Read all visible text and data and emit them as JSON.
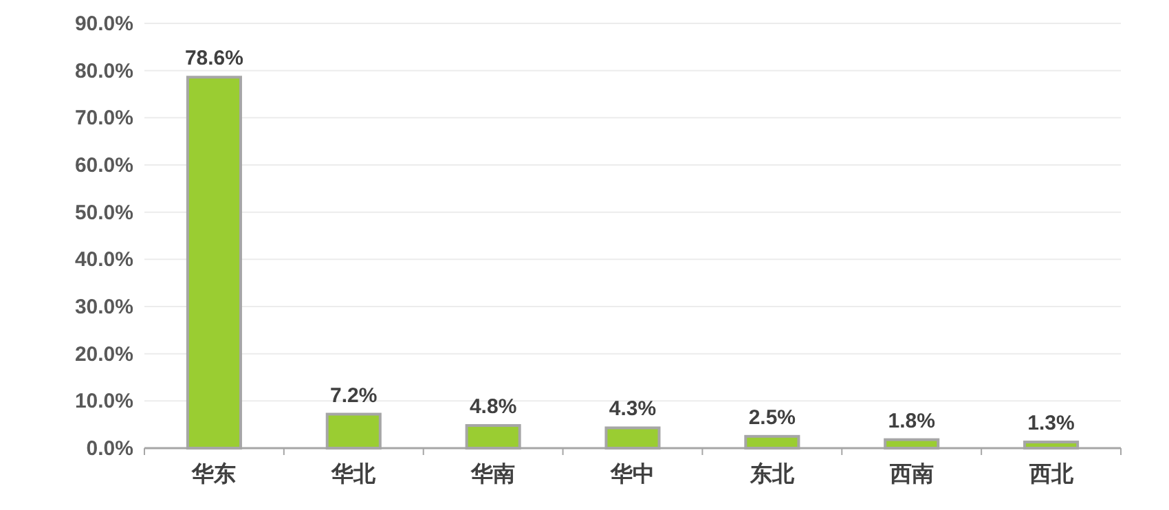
{
  "chart_data": {
    "type": "bar",
    "categories": [
      "华东",
      "华北",
      "华南",
      "华中",
      "东北",
      "西南",
      "西北"
    ],
    "values": [
      78.6,
      7.2,
      4.8,
      4.3,
      2.5,
      1.8,
      1.3
    ],
    "value_labels": [
      "78.6%",
      "7.2%",
      "4.8%",
      "4.3%",
      "2.5%",
      "1.8%",
      "1.3%"
    ],
    "color": "#9acd32",
    "ylim": [
      0,
      90
    ],
    "yticks": [
      {
        "value": 0,
        "label": "0.0%"
      },
      {
        "value": 10,
        "label": "10.0%"
      },
      {
        "value": 20,
        "label": "20.0%"
      },
      {
        "value": 30,
        "label": "30.0%"
      },
      {
        "value": 40,
        "label": "40.0%"
      },
      {
        "value": 50,
        "label": "50.0%"
      },
      {
        "value": 60,
        "label": "60.0%"
      },
      {
        "value": 70,
        "label": "70.0%"
      },
      {
        "value": 80,
        "label": "80.0%"
      },
      {
        "value": 90,
        "label": "90.0%"
      }
    ],
    "grid": "y"
  }
}
